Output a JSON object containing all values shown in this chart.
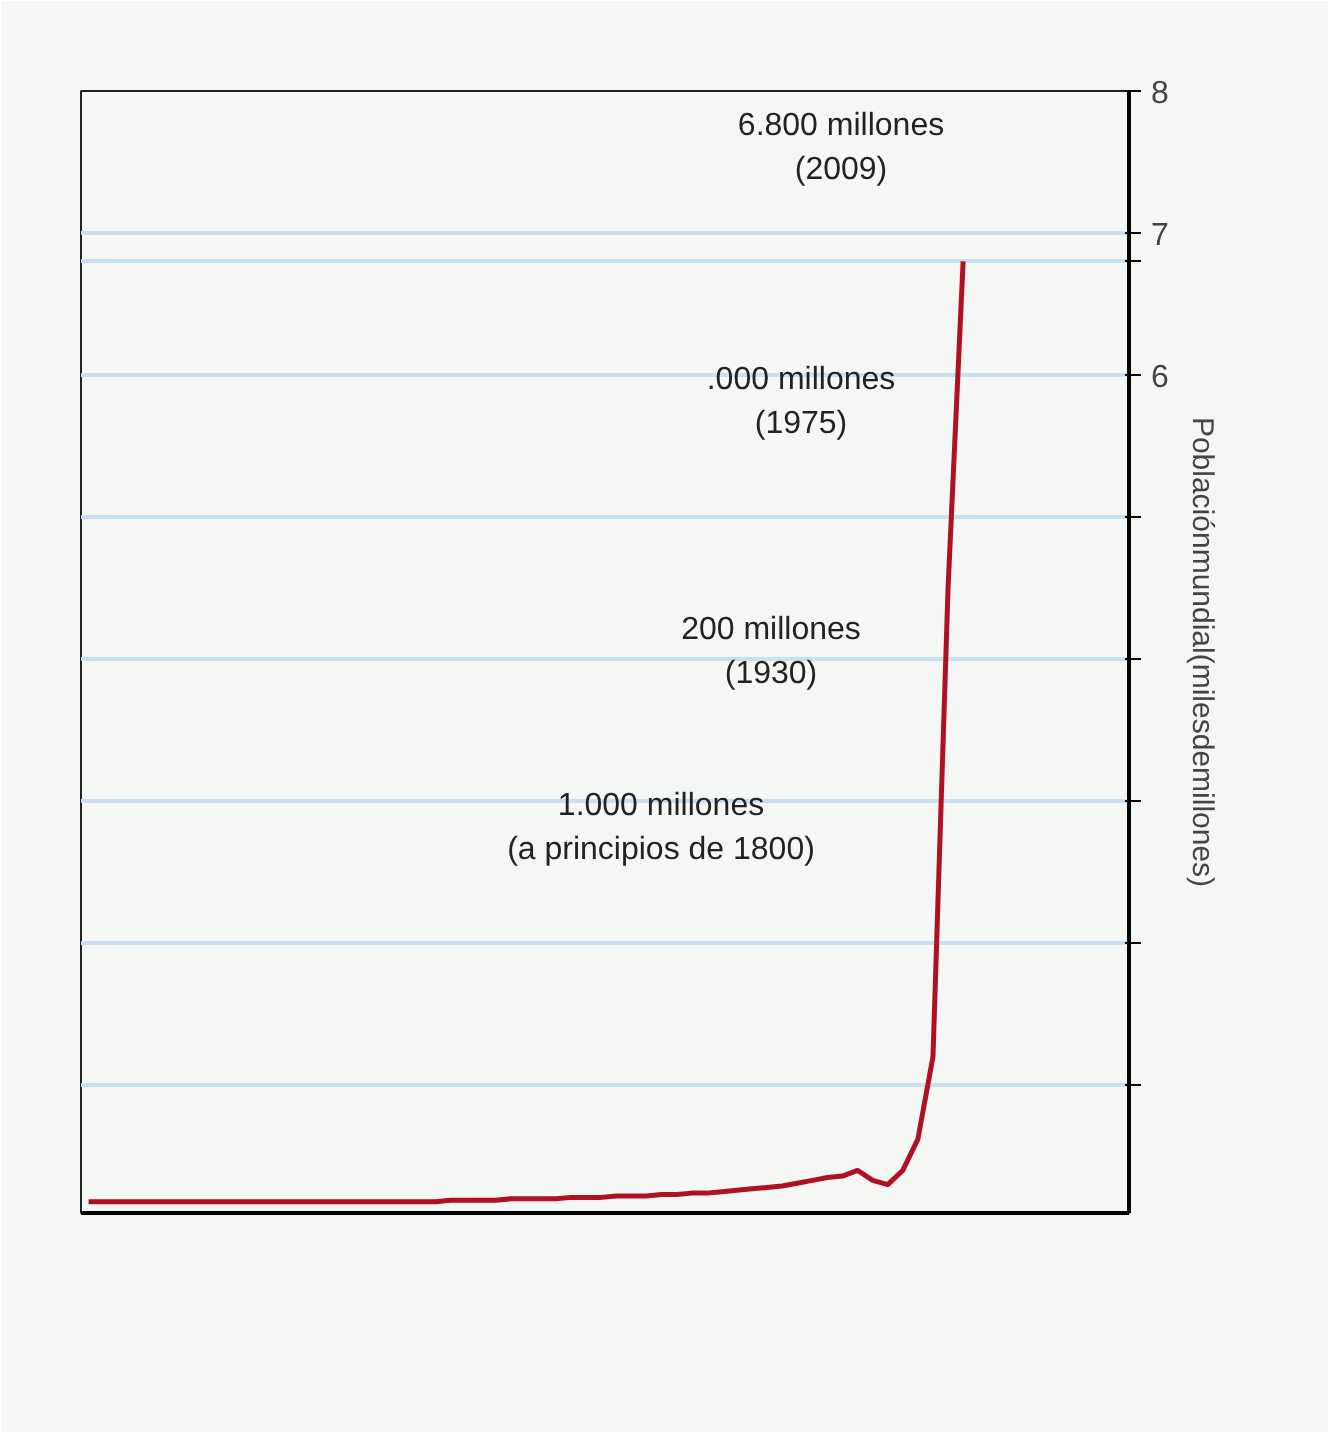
{
  "chart_data": {
    "type": "line",
    "ylabel": "Poblaciónmundial(milesdemillones)",
    "categories": [
      null,
      null,
      null,
      null,
      null,
      null,
      null,
      null,
      null,
      null,
      null,
      null,
      null,
      null,
      null,
      null,
      null,
      null,
      null,
      null,
      null,
      null,
      null,
      null,
      null,
      null,
      null,
      null,
      null,
      null,
      null,
      null,
      null,
      null,
      null,
      null,
      null,
      null,
      null,
      null,
      null,
      null,
      null,
      null,
      null,
      null,
      null,
      null,
      null,
      null,
      null,
      null,
      null,
      null,
      null,
      null,
      null,
      null,
      null
    ],
    "series": [
      {
        "color": "#b01020",
        "values": [
          0.18,
          0.18,
          0.18,
          0.18,
          0.18,
          0.18,
          0.18,
          0.18,
          0.18,
          0.18,
          0.18,
          0.18,
          0.18,
          0.18,
          0.18,
          0.18,
          0.18,
          0.18,
          0.18,
          0.18,
          0.18,
          0.18,
          0.18,
          0.18,
          0.19,
          0.19,
          0.19,
          0.19,
          0.2,
          0.2,
          0.2,
          0.2,
          0.21,
          0.21,
          0.21,
          0.22,
          0.22,
          0.22,
          0.23,
          0.23,
          0.24,
          0.24,
          0.25,
          0.26,
          0.27,
          0.28,
          0.29,
          0.31,
          0.33,
          0.35,
          0.36,
          0.4,
          0.33,
          0.3,
          0.4,
          0.62,
          1.2,
          4.5,
          6.8
        ]
      }
    ],
    "ylim": [
      0.1,
      8
    ],
    "yticks": [
      {
        "value": 1,
        "label": null
      },
      {
        "value": 2,
        "label": null
      },
      {
        "value": 3,
        "label": null
      },
      {
        "value": 4,
        "label": null
      },
      {
        "value": 5,
        "label": null
      },
      6,
      {
        "value": 6.8,
        "label": null
      },
      7,
      8
    ],
    "grid": "y",
    "tick_labels": "y",
    "annotations": [
      "6.800 millones\n(2009)",
      ".000 millones\n(1975)",
      "200 millones\n(1930)",
      "1.000 millones\n(a principios de 1800)"
    ]
  }
}
